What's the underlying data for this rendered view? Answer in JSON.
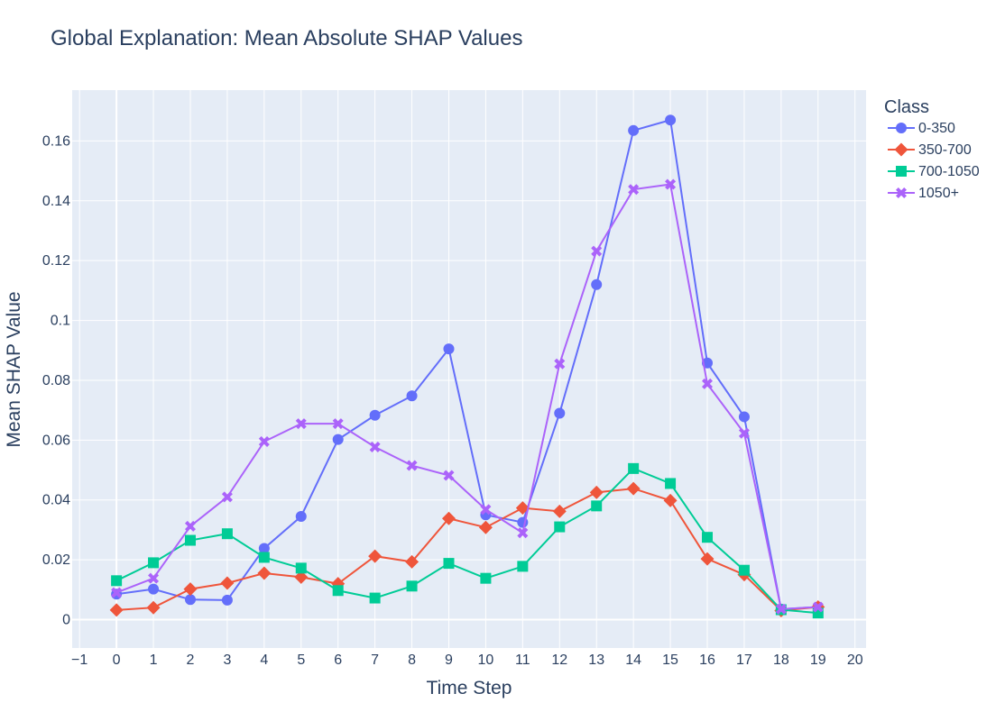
{
  "chart_data": {
    "type": "line",
    "title": "Global Explanation: Mean Absolute SHAP Values",
    "xlabel": "Time Step",
    "ylabel": "Mean SHAP Value",
    "xlim": [
      -1.2,
      20.3
    ],
    "ylim": [
      -0.0095,
      0.177
    ],
    "x_ticks": [
      -1,
      0,
      1,
      2,
      3,
      4,
      5,
      6,
      7,
      8,
      9,
      10,
      11,
      12,
      13,
      14,
      15,
      16,
      17,
      18,
      19,
      20
    ],
    "x_tick_labels": [
      "−1",
      "0",
      "1",
      "2",
      "3",
      "4",
      "5",
      "6",
      "7",
      "8",
      "9",
      "10",
      "11",
      "12",
      "13",
      "14",
      "15",
      "16",
      "17",
      "18",
      "19",
      "20"
    ],
    "y_ticks": [
      0,
      0.02,
      0.04,
      0.06,
      0.08,
      0.1,
      0.12,
      0.14,
      0.16
    ],
    "y_tick_labels": [
      "0",
      "0.02",
      "0.04",
      "0.06",
      "0.08",
      "0.1",
      "0.12",
      "0.14",
      "0.16"
    ],
    "grid": true,
    "legend_title": "Class",
    "legend_position": "top-right, outside plot",
    "x": [
      0,
      1,
      2,
      3,
      4,
      5,
      6,
      7,
      8,
      9,
      10,
      11,
      12,
      13,
      14,
      15,
      16,
      17,
      18,
      19
    ],
    "series": [
      {
        "name": "0-350",
        "color": "#636efa",
        "marker": "circle",
        "values": [
          0.0085,
          0.0102,
          0.0067,
          0.0065,
          0.0238,
          0.0345,
          0.0602,
          0.0683,
          0.0748,
          0.0905,
          0.035,
          0.0325,
          0.069,
          0.112,
          0.1635,
          0.167,
          0.0858,
          0.0678,
          0.0035,
          0.0042
        ]
      },
      {
        "name": "350-700",
        "color": "#ef553b",
        "marker": "diamond",
        "values": [
          0.0032,
          0.004,
          0.0102,
          0.0122,
          0.0155,
          0.0142,
          0.012,
          0.0212,
          0.0193,
          0.0338,
          0.0308,
          0.0373,
          0.0362,
          0.0425,
          0.0438,
          0.0398,
          0.0203,
          0.015,
          0.003,
          0.0042
        ]
      },
      {
        "name": "700-1050",
        "color": "#00cc96",
        "marker": "square",
        "values": [
          0.013,
          0.019,
          0.0265,
          0.0287,
          0.0208,
          0.0172,
          0.0097,
          0.0072,
          0.0112,
          0.0188,
          0.0138,
          0.0178,
          0.031,
          0.038,
          0.0505,
          0.0455,
          0.0275,
          0.0165,
          0.0033,
          0.0022
        ]
      },
      {
        "name": "1050+",
        "color": "#ab63fa",
        "marker": "x",
        "values": [
          0.009,
          0.0138,
          0.0312,
          0.041,
          0.0595,
          0.0655,
          0.0655,
          0.0577,
          0.0515,
          0.0482,
          0.0368,
          0.029,
          0.0855,
          0.1232,
          0.1438,
          0.1455,
          0.0788,
          0.0623,
          0.0035,
          0.0042
        ]
      }
    ]
  }
}
